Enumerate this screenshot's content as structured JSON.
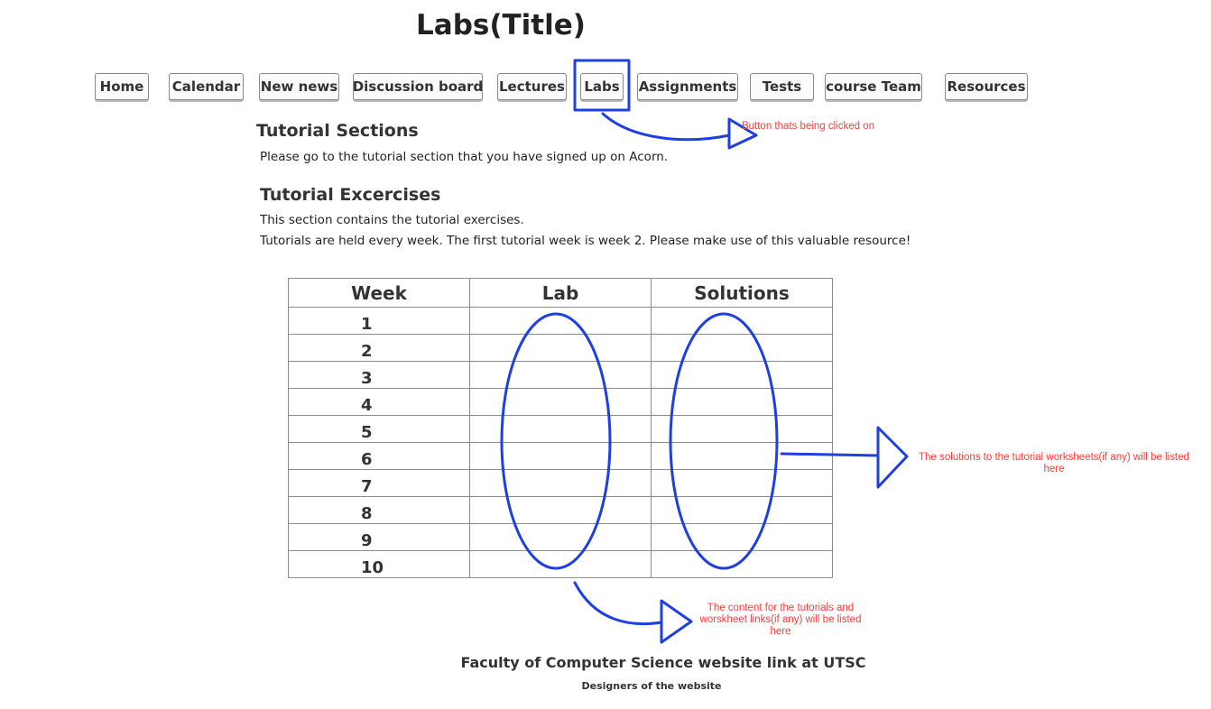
{
  "header": {
    "title": "Labs(Title)"
  },
  "nav": {
    "items": [
      {
        "label": "Home"
      },
      {
        "label": "Calendar"
      },
      {
        "label": "New news"
      },
      {
        "label": "Discussion board"
      },
      {
        "label": "Lectures"
      },
      {
        "label": "Labs",
        "selected": true
      },
      {
        "label": "Assignments"
      },
      {
        "label": "Tests"
      },
      {
        "label": "course Team"
      },
      {
        "label": "Resources"
      }
    ]
  },
  "sections": {
    "tutorial_sections": {
      "heading": "Tutorial Sections",
      "text": "Please go to the tutorial section that you have signed up on Acorn."
    },
    "tutorial_exercises": {
      "heading": "Tutorial Excercises",
      "line1": "This section contains the tutorial exercises.",
      "line2": "Tutorials are held every week. The first tutorial week is week 2. Please make use of this valuable resource!"
    }
  },
  "table": {
    "headers": [
      "Week",
      "Lab",
      "Solutions"
    ],
    "weeks": [
      "1",
      "2",
      "3",
      "4",
      "5",
      "6",
      "7",
      "8",
      "9",
      "10"
    ]
  },
  "annotations": {
    "button_note": "Button thats being clicked on",
    "solutions_note": "The solutions to the tutorial worksheets(if any) will be listed here",
    "labs_note": "The content for the tutorials and worskheet links(if any) will be listed here",
    "annotation_color": "#ff3a3a",
    "markup_color": "#1f3fe0"
  },
  "footer": {
    "link": "Faculty of Computer Science website link at UTSC",
    "designers": "Designers of the website"
  }
}
